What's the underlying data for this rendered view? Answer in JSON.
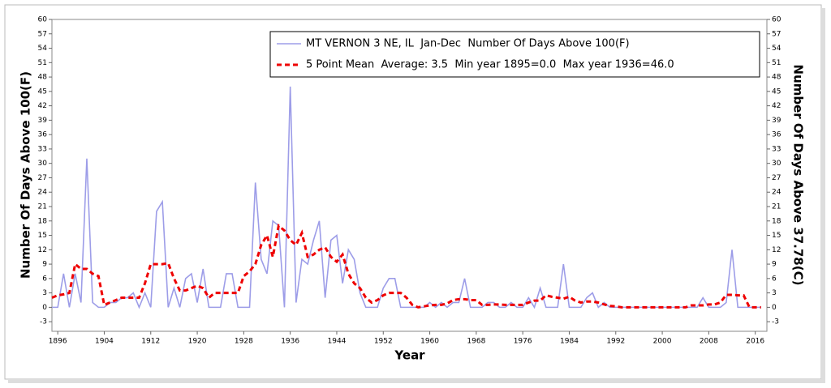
{
  "chart_data": {
    "type": "line",
    "xlabel": "Year",
    "ylabel": "Number Of Days Above 100(F)",
    "y2label": "Number Of Days Above 37.78(C)",
    "x": [
      1895,
      1896,
      1897,
      1898,
      1899,
      1900,
      1901,
      1902,
      1903,
      1904,
      1905,
      1906,
      1907,
      1908,
      1909,
      1910,
      1911,
      1912,
      1913,
      1914,
      1915,
      1916,
      1917,
      1918,
      1919,
      1920,
      1921,
      1922,
      1923,
      1924,
      1925,
      1926,
      1927,
      1928,
      1929,
      1930,
      1931,
      1932,
      1933,
      1934,
      1935,
      1936,
      1937,
      1938,
      1939,
      1940,
      1941,
      1942,
      1943,
      1944,
      1945,
      1946,
      1947,
      1948,
      1949,
      1950,
      1951,
      1952,
      1953,
      1954,
      1955,
      1956,
      1957,
      1958,
      1959,
      1960,
      1961,
      1962,
      1963,
      1964,
      1965,
      1966,
      1967,
      1968,
      1969,
      1970,
      1971,
      1972,
      1973,
      1974,
      1975,
      1976,
      1977,
      1978,
      1979,
      1980,
      1981,
      1982,
      1983,
      1984,
      1985,
      1986,
      1987,
      1988,
      1989,
      1990,
      1991,
      1992,
      1993,
      1994,
      1995,
      1996,
      1997,
      1998,
      1999,
      2000,
      2001,
      2002,
      2003,
      2004,
      2005,
      2006,
      2007,
      2008,
      2009,
      2010,
      2011,
      2012,
      2013,
      2014,
      2015,
      2016,
      2017
    ],
    "series": [
      {
        "name": "MT VERNON 3 NE, IL  Jan-Dec  Number Of Days Above 100(F)",
        "color": "#9d9de8",
        "dashed": false,
        "values": [
          0,
          0,
          7,
          0,
          7,
          1,
          31,
          1,
          0,
          0,
          1,
          1,
          2,
          2,
          3,
          0,
          3,
          0,
          20,
          22,
          0,
          4,
          0,
          6,
          7,
          1,
          8,
          0,
          0,
          0,
          7,
          7,
          0,
          0,
          0,
          26,
          10,
          7,
          18,
          17,
          0,
          46,
          1,
          10,
          9,
          14,
          18,
          2,
          14,
          15,
          5,
          12,
          10,
          3,
          0,
          0,
          0,
          4,
          6,
          6,
          0,
          0,
          0,
          0,
          0,
          1,
          0,
          1,
          0,
          1,
          1,
          6,
          0,
          0,
          0,
          1,
          1,
          0,
          0,
          1,
          0,
          0,
          2,
          0,
          4,
          0,
          0,
          0,
          9,
          0,
          0,
          0,
          2,
          3,
          0,
          1,
          0,
          0,
          0,
          0,
          0,
          0,
          0,
          0,
          0,
          0,
          0,
          0,
          0,
          0,
          0,
          0,
          2,
          0,
          0,
          0,
          1,
          12,
          0,
          0,
          0,
          0,
          0
        ]
      },
      {
        "name": "5 Point Mean  Average: 3.5  Min year 1895=0.0  Max year 1936=46.0",
        "color": "#ee0000",
        "dashed": true,
        "values": [
          2,
          2.5,
          2.7,
          3,
          9,
          8,
          8,
          7,
          6.5,
          0.5,
          1,
          1.5,
          2,
          2,
          2,
          2,
          5,
          9,
          9,
          9,
          9.2,
          6,
          3.5,
          3.5,
          4,
          4.5,
          4,
          2,
          3,
          3,
          3,
          3,
          3,
          6.5,
          7.5,
          9,
          13,
          15,
          10.5,
          17,
          16,
          14,
          13,
          15.5,
          10.5,
          11,
          12,
          12.5,
          10.5,
          9.5,
          11,
          7,
          5,
          4,
          2,
          1,
          1.5,
          2.5,
          3,
          3,
          3,
          2,
          0.5,
          0,
          0.2,
          0.4,
          0.5,
          0.5,
          0.8,
          1.5,
          1.7,
          1.7,
          1.5,
          1.5,
          0.5,
          0.5,
          0.6,
          0.6,
          0.5,
          0.5,
          0.5,
          0.5,
          1,
          1.4,
          1.4,
          2.5,
          2.2,
          2,
          1.8,
          2.2,
          1.4,
          1,
          1.2,
          1.2,
          1,
          0.6,
          0.3,
          0.2,
          0,
          0,
          0,
          0,
          0,
          0,
          0,
          0,
          0,
          0,
          0,
          0,
          0.4,
          0.4,
          0.4,
          0.6,
          0.6,
          1,
          2.6,
          2.6,
          2.5,
          2.5,
          0,
          0,
          0
        ]
      }
    ],
    "xlim": [
      1895,
      2018
    ],
    "xticks": [
      1896,
      1904,
      1912,
      1920,
      1928,
      1936,
      1944,
      1952,
      1960,
      1968,
      1976,
      1984,
      1992,
      2000,
      2008,
      2016
    ],
    "ylim": [
      -5,
      60
    ],
    "yticks": [
      -3,
      0,
      3,
      6,
      9,
      12,
      15,
      18,
      21,
      24,
      27,
      30,
      33,
      36,
      39,
      42,
      45,
      48,
      51,
      54,
      57,
      60
    ],
    "y2lim": [
      -5,
      60
    ],
    "y2ticks": [
      -3,
      0,
      3,
      6,
      9,
      12,
      15,
      18,
      21,
      24,
      27,
      30,
      33,
      36,
      39,
      42,
      45,
      48,
      51,
      54,
      57,
      60
    ],
    "legend": "top-right"
  }
}
